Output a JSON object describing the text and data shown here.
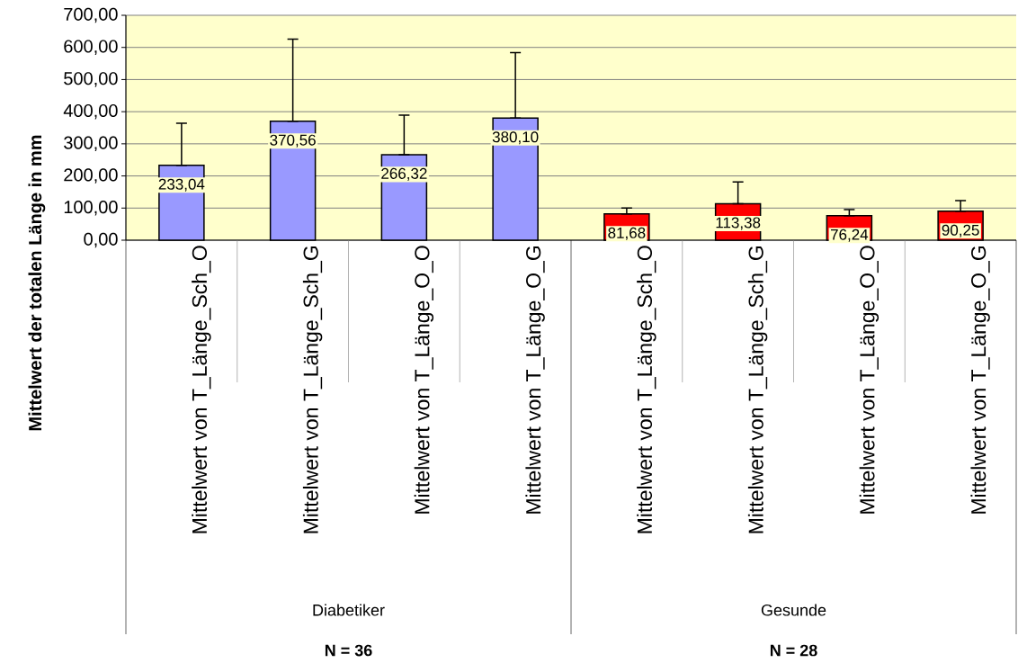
{
  "chart_data": {
    "type": "bar",
    "ylabel": "Mittelwert der totalen Länge in mm",
    "categories": [
      "Mittelwert von T_Länge_Sch_O",
      "Mittelwert von T_Länge_Sch_G",
      "Mittelwert von T_Länge_O_O",
      "Mittelwert von T_Länge_O_G",
      "Mittelwert von T_Länge_Sch_O",
      "Mittelwert von T_Länge_Sch_G",
      "Mittelwert von T_Länge_O_O",
      "Mittelwert von T_Länge_O_G"
    ],
    "values": [
      233.04,
      370.56,
      266.32,
      380.1,
      81.68,
      113.38,
      76.24,
      90.25
    ],
    "value_labels": [
      "233,04",
      "370,56",
      "266,32",
      "380,10",
      "81,68",
      "113,38",
      "76,24",
      "90,25"
    ],
    "colors": [
      "#9999ff",
      "#9999ff",
      "#9999ff",
      "#9999ff",
      "#ff0000",
      "#ff0000",
      "#ff0000",
      "#ff0000"
    ],
    "errors": [
      [
        233.04,
        364
      ],
      [
        370.56,
        626
      ],
      [
        266.32,
        389
      ],
      [
        380.1,
        584
      ],
      [
        81.68,
        100
      ],
      [
        113.38,
        181
      ],
      [
        76.24,
        95
      ],
      [
        90.25,
        123
      ]
    ],
    "ylim": [
      0,
      700
    ],
    "yticks": [
      {
        "value": 0,
        "label": "0,00"
      },
      {
        "value": 100,
        "label": "100,00"
      },
      {
        "value": 200,
        "label": "200,00"
      },
      {
        "value": 300,
        "label": "300,00"
      },
      {
        "value": 400,
        "label": "400,00"
      },
      {
        "value": 500,
        "label": "500,00"
      },
      {
        "value": 600,
        "label": "600,00"
      },
      {
        "value": 700,
        "label": "700,00"
      }
    ],
    "grid": "y",
    "annotations": [
      "Diabetiker",
      "Gesunde",
      "**N = 36**",
      "**N = 28**"
    ]
  }
}
